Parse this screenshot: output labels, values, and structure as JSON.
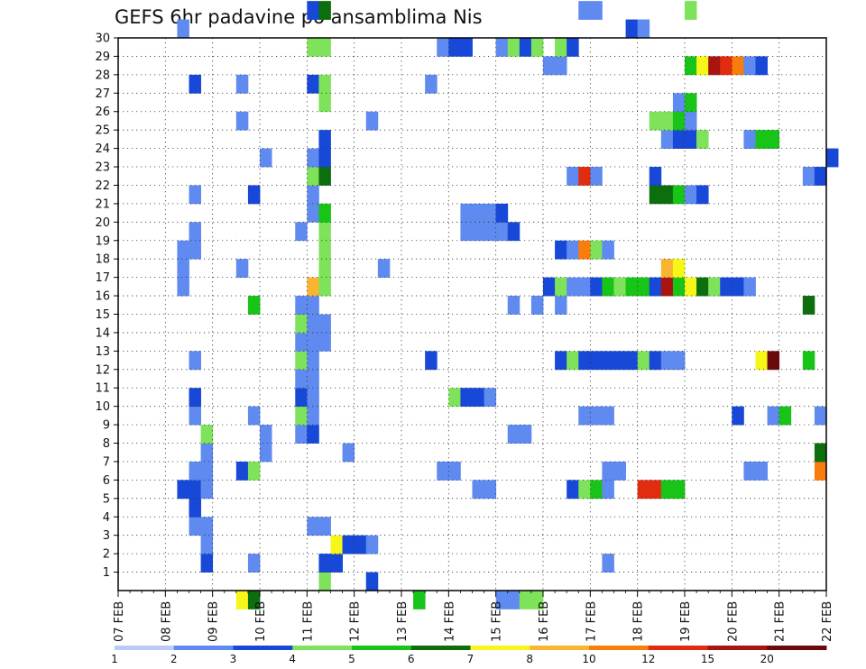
{
  "chart_data": {
    "type": "heatmap",
    "title": "GEFS 6hr padavine po ansamblima Nis",
    "x_tick_labels": [
      "07 FEB",
      "08 FEB",
      "09 FEB",
      "10 FEB",
      "11 FEB",
      "12 FEB",
      "13 FEB",
      "14 FEB",
      "15 FEB",
      "16 FEB",
      "17 FEB",
      "18 FEB",
      "19 FEB",
      "20 FEB",
      "21 FEB",
      "22 FEB"
    ],
    "y_tick_labels": [
      "1",
      "2",
      "3",
      "4",
      "5",
      "6",
      "7",
      "8",
      "9",
      "10",
      "11",
      "12",
      "13",
      "14",
      "15",
      "16",
      "17",
      "18",
      "19",
      "20",
      "21",
      "22",
      "23",
      "24",
      "25",
      "26",
      "27",
      "28",
      "29",
      "30"
    ],
    "x_range_steps": [
      0,
      60
    ],
    "y_range": [
      0,
      30
    ],
    "grid": true,
    "legend_placement": "bottom",
    "colorbar": {
      "boundaries": [
        "1",
        "2",
        "3",
        "4",
        "5",
        "6",
        "7",
        "8",
        "10",
        "12",
        "15",
        "20"
      ],
      "colors": [
        "#bccbf4",
        "#5f8af0",
        "#1848d8",
        "#7ee35a",
        "#18c418",
        "#0c6e0c",
        "#f6f618",
        "#f9b532",
        "#f97d0d",
        "#e22c10",
        "#a8140f",
        "#6a0a0a"
      ]
    },
    "cells": [
      [
        10,
        -1,
        6
      ],
      [
        11,
        -1,
        5
      ],
      [
        25,
        -1,
        4
      ],
      [
        32,
        -1,
        1
      ],
      [
        33,
        -1,
        1
      ],
      [
        34,
        -1,
        3
      ],
      [
        35,
        -1,
        3
      ],
      [
        17,
        0,
        3
      ],
      [
        21,
        0,
        2
      ],
      [
        41,
        1,
        1
      ],
      [
        17,
        1,
        2
      ],
      [
        18,
        1,
        2
      ],
      [
        7,
        1,
        2
      ],
      [
        11,
        1,
        1
      ],
      [
        18,
        2,
        6
      ],
      [
        19,
        2,
        2
      ],
      [
        20,
        2,
        2
      ],
      [
        21,
        2,
        1
      ],
      [
        7,
        2,
        1
      ],
      [
        6,
        3,
        1
      ],
      [
        7,
        3,
        1
      ],
      [
        16,
        3,
        1
      ],
      [
        17,
        3,
        1
      ],
      [
        6,
        4,
        2
      ],
      [
        6,
        5,
        2
      ],
      [
        7,
        5,
        1
      ],
      [
        44,
        5,
        9
      ],
      [
        45,
        5,
        9
      ],
      [
        46,
        5,
        4
      ],
      [
        47,
        5,
        4
      ],
      [
        5,
        5,
        2
      ],
      [
        7,
        6,
        1
      ],
      [
        10,
        6,
        2
      ],
      [
        11,
        6,
        3
      ],
      [
        27,
        6,
        1
      ],
      [
        28,
        6,
        1
      ],
      [
        41,
        6,
        1
      ],
      [
        42,
        6,
        1
      ],
      [
        53,
        6,
        1
      ],
      [
        54,
        6,
        1
      ],
      [
        6,
        6,
        1
      ],
      [
        59,
        6,
        8
      ],
      [
        30,
        5,
        1
      ],
      [
        31,
        5,
        1
      ],
      [
        38,
        5,
        2
      ],
      [
        39,
        5,
        3
      ],
      [
        40,
        5,
        4
      ],
      [
        41,
        5,
        1
      ],
      [
        7,
        7,
        1
      ],
      [
        12,
        7,
        1
      ],
      [
        19,
        7,
        1
      ],
      [
        59,
        7,
        5
      ],
      [
        7,
        8,
        3
      ],
      [
        12,
        8,
        1
      ],
      [
        15,
        8,
        1
      ],
      [
        16,
        8,
        2
      ],
      [
        33,
        8,
        1
      ],
      [
        34,
        8,
        1
      ],
      [
        6,
        9,
        1
      ],
      [
        11,
        9,
        1
      ],
      [
        15,
        9,
        3
      ],
      [
        16,
        9,
        1
      ],
      [
        39,
        9,
        1
      ],
      [
        40,
        9,
        1
      ],
      [
        41,
        9,
        1
      ],
      [
        52,
        9,
        2
      ],
      [
        55,
        9,
        1
      ],
      [
        56,
        9,
        4
      ],
      [
        59,
        9,
        1
      ],
      [
        6,
        10,
        2
      ],
      [
        15,
        10,
        2
      ],
      [
        16,
        10,
        1
      ],
      [
        28,
        10,
        3
      ],
      [
        29,
        10,
        2
      ],
      [
        30,
        10,
        2
      ],
      [
        31,
        10,
        1
      ],
      [
        15,
        12,
        3
      ],
      [
        16,
        12,
        1
      ],
      [
        26,
        12,
        2
      ],
      [
        37,
        12,
        2
      ],
      [
        38,
        12,
        3
      ],
      [
        39,
        12,
        2
      ],
      [
        40,
        12,
        2
      ],
      [
        41,
        12,
        2
      ],
      [
        42,
        12,
        2
      ],
      [
        43,
        12,
        2
      ],
      [
        44,
        12,
        3
      ],
      [
        45,
        12,
        2
      ],
      [
        46,
        12,
        1
      ],
      [
        47,
        12,
        1
      ],
      [
        54,
        12,
        6
      ],
      [
        55,
        12,
        11
      ],
      [
        15,
        11,
        1
      ],
      [
        16,
        11,
        1
      ],
      [
        6,
        12,
        1
      ],
      [
        58,
        12,
        4
      ],
      [
        15,
        13,
        1
      ],
      [
        16,
        13,
        1
      ],
      [
        17,
        13,
        1
      ],
      [
        15,
        14,
        3
      ],
      [
        16,
        14,
        1
      ],
      [
        17,
        14,
        1
      ],
      [
        11,
        15,
        4
      ],
      [
        15,
        15,
        1
      ],
      [
        16,
        15,
        1
      ],
      [
        33,
        15,
        1
      ],
      [
        35,
        15,
        1
      ],
      [
        37,
        15,
        1
      ],
      [
        58,
        15,
        5
      ],
      [
        5,
        16,
        1
      ],
      [
        16,
        16,
        7
      ],
      [
        17,
        16,
        3
      ],
      [
        36,
        16,
        2
      ],
      [
        37,
        16,
        3
      ],
      [
        38,
        16,
        1
      ],
      [
        39,
        16,
        1
      ],
      [
        40,
        16,
        2
      ],
      [
        41,
        16,
        4
      ],
      [
        42,
        16,
        3
      ],
      [
        43,
        16,
        4
      ],
      [
        44,
        16,
        4
      ],
      [
        45,
        16,
        2
      ],
      [
        46,
        16,
        10
      ],
      [
        47,
        16,
        4
      ],
      [
        48,
        16,
        6
      ],
      [
        49,
        16,
        5
      ],
      [
        50,
        16,
        3
      ],
      [
        51,
        16,
        2
      ],
      [
        52,
        16,
        2
      ],
      [
        53,
        16,
        1
      ],
      [
        5,
        17,
        1
      ],
      [
        10,
        17,
        1
      ],
      [
        22,
        17,
        1
      ],
      [
        17,
        17,
        3
      ],
      [
        46,
        17,
        7
      ],
      [
        47,
        17,
        6
      ],
      [
        5,
        18,
        1
      ],
      [
        6,
        18,
        1
      ],
      [
        17,
        18,
        3
      ],
      [
        37,
        18,
        2
      ],
      [
        38,
        18,
        1
      ],
      [
        39,
        18,
        8
      ],
      [
        40,
        18,
        3
      ],
      [
        41,
        18,
        1
      ],
      [
        6,
        19,
        1
      ],
      [
        15,
        19,
        1
      ],
      [
        17,
        19,
        3
      ],
      [
        29,
        19,
        1
      ],
      [
        30,
        19,
        1
      ],
      [
        31,
        19,
        1
      ],
      [
        32,
        19,
        1
      ],
      [
        33,
        19,
        2
      ],
      [
        16,
        20,
        1
      ],
      [
        17,
        20,
        4
      ],
      [
        29,
        20,
        1
      ],
      [
        30,
        20,
        1
      ],
      [
        31,
        20,
        1
      ],
      [
        32,
        20,
        2
      ],
      [
        6,
        21,
        1
      ],
      [
        11,
        21,
        2
      ],
      [
        16,
        21,
        1
      ],
      [
        45,
        21,
        5
      ],
      [
        46,
        21,
        5
      ],
      [
        47,
        21,
        4
      ],
      [
        48,
        21,
        1
      ],
      [
        49,
        21,
        2
      ],
      [
        16,
        22,
        3
      ],
      [
        17,
        22,
        5
      ],
      [
        38,
        22,
        1
      ],
      [
        39,
        22,
        9
      ],
      [
        40,
        22,
        1
      ],
      [
        45,
        22,
        2
      ],
      [
        58,
        22,
        1
      ],
      [
        59,
        22,
        2
      ],
      [
        12,
        23,
        1
      ],
      [
        16,
        23,
        1
      ],
      [
        17,
        23,
        2
      ],
      [
        60,
        23,
        2
      ],
      [
        17,
        24,
        2
      ],
      [
        46,
        24,
        1
      ],
      [
        47,
        24,
        2
      ],
      [
        48,
        24,
        2
      ],
      [
        49,
        24,
        3
      ],
      [
        53,
        24,
        1
      ],
      [
        54,
        24,
        4
      ],
      [
        55,
        24,
        4
      ],
      [
        10,
        25,
        1
      ],
      [
        21,
        25,
        1
      ],
      [
        45,
        25,
        3
      ],
      [
        46,
        25,
        3
      ],
      [
        47,
        25,
        4
      ],
      [
        48,
        25,
        1
      ],
      [
        17,
        26,
        3
      ],
      [
        47,
        26,
        1
      ],
      [
        48,
        26,
        4
      ],
      [
        6,
        27,
        2
      ],
      [
        10,
        27,
        1
      ],
      [
        16,
        27,
        2
      ],
      [
        17,
        27,
        3
      ],
      [
        26,
        27,
        1
      ],
      [
        36,
        28,
        1
      ],
      [
        37,
        28,
        1
      ],
      [
        48,
        28,
        4
      ],
      [
        49,
        28,
        6
      ],
      [
        50,
        28,
        10
      ],
      [
        51,
        28,
        9
      ],
      [
        52,
        28,
        8
      ],
      [
        53,
        28,
        1
      ],
      [
        54,
        28,
        2
      ],
      [
        16,
        29,
        3
      ],
      [
        17,
        29,
        3
      ],
      [
        27,
        29,
        1
      ],
      [
        28,
        29,
        2
      ],
      [
        29,
        29,
        2
      ],
      [
        32,
        29,
        1
      ],
      [
        33,
        29,
        3
      ],
      [
        34,
        29,
        2
      ],
      [
        35,
        29,
        3
      ],
      [
        37,
        29,
        3
      ],
      [
        38,
        29,
        2
      ],
      [
        5,
        30,
        1
      ],
      [
        43,
        30,
        2
      ],
      [
        44,
        30,
        1
      ],
      [
        16,
        31,
        2
      ],
      [
        17,
        31,
        5
      ],
      [
        39,
        31,
        1
      ],
      [
        40,
        31,
        1
      ],
      [
        48,
        31,
        3
      ]
    ]
  }
}
